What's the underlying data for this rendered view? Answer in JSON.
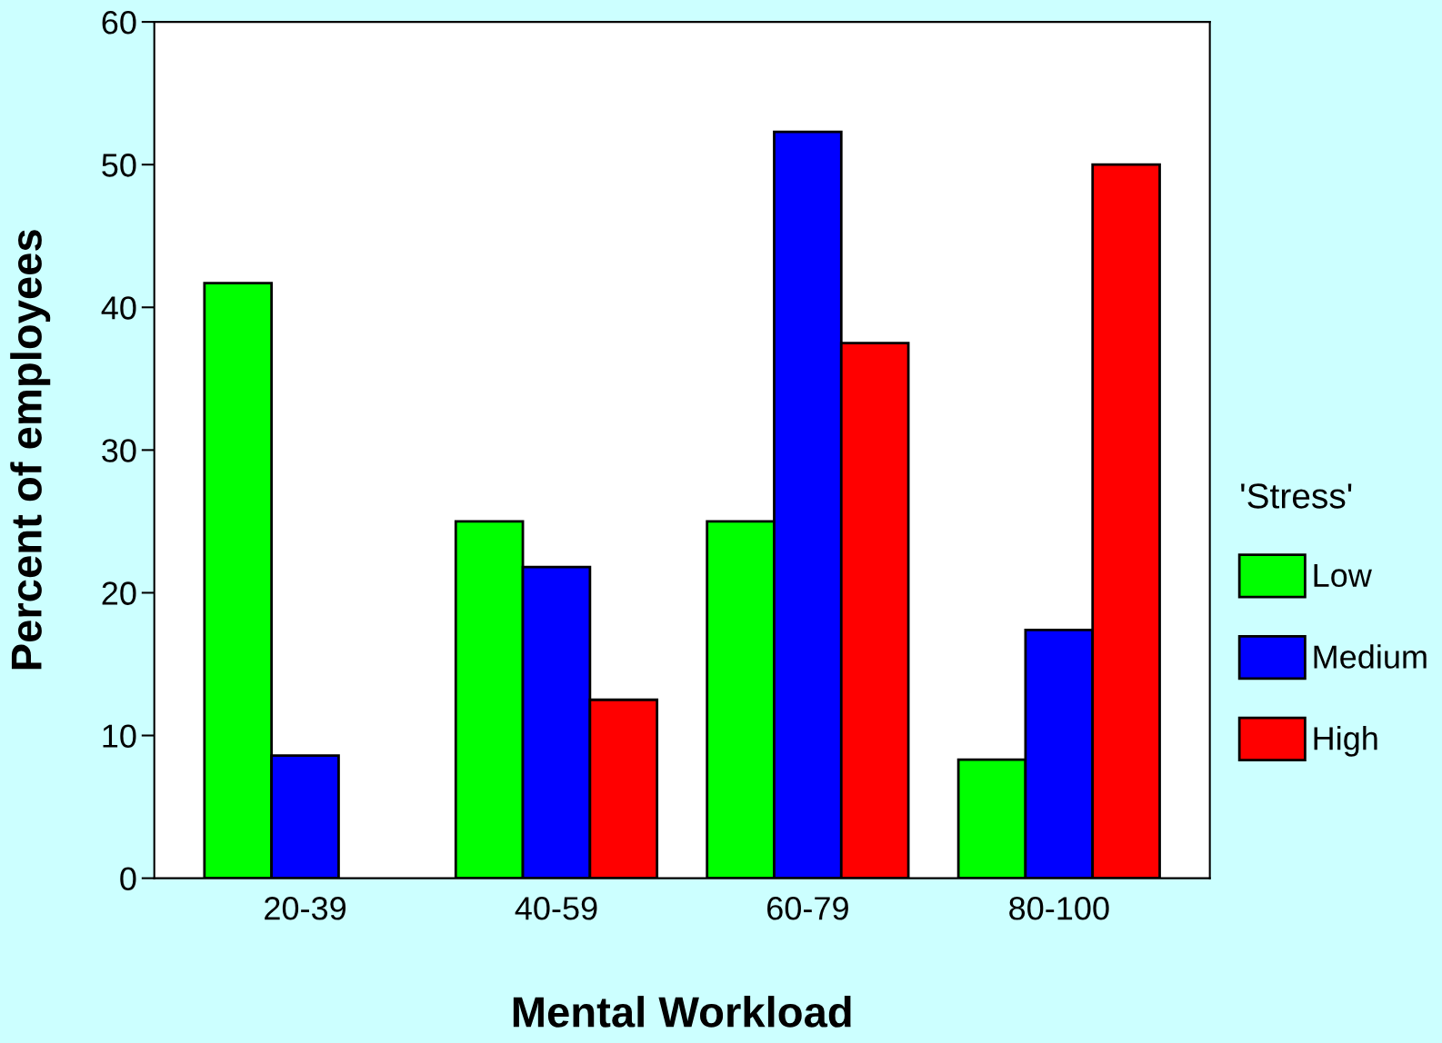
{
  "chart_data": {
    "type": "bar",
    "xlabel": "Mental Workload",
    "ylabel": "Percent of employees",
    "legend_title": "'Stress'",
    "categories": [
      "20-39",
      "40-59",
      "60-79",
      "80-100"
    ],
    "series": [
      {
        "name": "Low",
        "color": "#00ff00",
        "values": [
          41.7,
          25,
          25,
          8.3
        ]
      },
      {
        "name": "Medium",
        "color": "#0000ff",
        "values": [
          8.6,
          21.8,
          52.3,
          17.4
        ]
      },
      {
        "name": "High",
        "color": "#ff0000",
        "values": [
          0,
          12.5,
          37.5,
          50
        ]
      }
    ],
    "ylim": [
      0,
      60
    ],
    "yticks": [
      0,
      10,
      20,
      30,
      40,
      50,
      60
    ],
    "grid": false,
    "legend": "right"
  }
}
